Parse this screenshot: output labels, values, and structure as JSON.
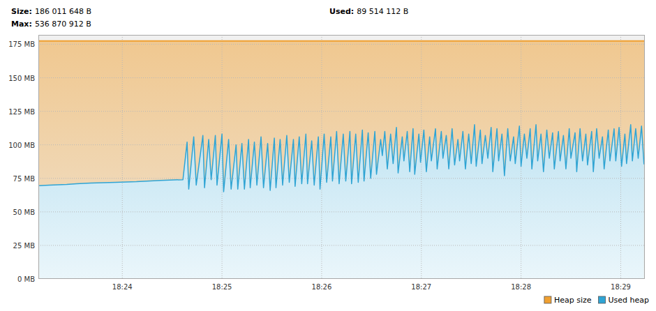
{
  "chart_data": {
    "type": "area",
    "annotations": [
      {
        "label": "Size:",
        "text": "186 011 648 B"
      },
      {
        "label": "Max:",
        "text": "536 870 912 B"
      },
      {
        "label": "Used:",
        "text": "89 514 112 B"
      }
    ],
    "xlim": [
      1389.5,
      1754.5
    ],
    "xticks": [
      {
        "value": 1440,
        "label": "18:24"
      },
      {
        "value": 1500,
        "label": "18:25"
      },
      {
        "value": 1560,
        "label": "18:26"
      },
      {
        "value": 1620,
        "label": "18:27"
      },
      {
        "value": 1680,
        "label": "18:28"
      },
      {
        "value": 1740,
        "label": "18:29"
      }
    ],
    "ylim": [
      0,
      182
    ],
    "yticks": [
      {
        "value": 0,
        "label": "0 MB"
      },
      {
        "value": 25,
        "label": "25 MB"
      },
      {
        "value": 50,
        "label": "50 MB"
      },
      {
        "value": 75,
        "label": "75 MB"
      },
      {
        "value": 100,
        "label": "100 MB"
      },
      {
        "value": 125,
        "label": "125 MB"
      },
      {
        "value": 150,
        "label": "150 MB"
      },
      {
        "value": 175,
        "label": "175 MB"
      }
    ],
    "grid": true,
    "legend": "bottom-right",
    "series": [
      {
        "name": "Heap size",
        "color": "#f0a030",
        "x": [
          1389.5,
          1754.5
        ],
        "values": [
          177.4,
          177.4
        ]
      },
      {
        "name": "Used heap",
        "color": "#2fa4d4",
        "x": [
          1390,
          1396,
          1406.5,
          1412.5,
          1421,
          1436,
          1448.5,
          1463,
          1476.5,
          1479,
          1480,
          1483,
          1484.5,
          1488.5,
          1489.5,
          1492,
          1493.5,
          1496,
          1497,
          1500,
          1501,
          1504,
          1505.5,
          1508.5,
          1509.5,
          1512,
          1513.5,
          1516,
          1517,
          1519.5,
          1521,
          1523.5,
          1525,
          1527.5,
          1529,
          1531.5,
          1532.5,
          1535,
          1536.5,
          1539,
          1540.5,
          1543,
          1544,
          1546.5,
          1548,
          1550.5,
          1551.5,
          1554,
          1555.5,
          1558,
          1559,
          1561.5,
          1563,
          1565.5,
          1566.5,
          1569,
          1570.5,
          1573,
          1574.5,
          1577,
          1578,
          1580.5,
          1582,
          1584.5,
          1585.5,
          1588,
          1589.5,
          1592,
          1593,
          1595.5,
          1596.5,
          1598,
          1599.5,
          1601.5,
          1603,
          1605,
          1606,
          1608.5,
          1609.5,
          1611.5,
          1613,
          1615,
          1616,
          1618.5,
          1619.5,
          1621.5,
          1623,
          1625,
          1626,
          1628.5,
          1629.5,
          1632,
          1633,
          1635,
          1636.5,
          1638.5,
          1640,
          1642,
          1643,
          1645,
          1646.5,
          1648.5,
          1650,
          1652,
          1653,
          1655.5,
          1656.5,
          1658.5,
          1660,
          1662,
          1663,
          1665.5,
          1666.5,
          1668.5,
          1670,
          1672,
          1673.5,
          1675.5,
          1676.5,
          1679,
          1680,
          1682,
          1683.5,
          1685.5,
          1686.5,
          1689,
          1690,
          1692,
          1693.5,
          1695.5,
          1697,
          1699,
          1700,
          1702.5,
          1703.5,
          1705.5,
          1707,
          1709,
          1710,
          1712.5,
          1713.5,
          1715.5,
          1717,
          1719,
          1720,
          1722.5,
          1723.5,
          1725.5,
          1727,
          1729,
          1730,
          1732.5,
          1733.5,
          1736,
          1737,
          1739,
          1740.5,
          1742.5,
          1743.5,
          1746,
          1747,
          1749,
          1750.5,
          1752.5,
          1754
        ],
        "values": [
          69.5,
          70,
          70.5,
          71,
          71.5,
          72,
          72.5,
          73.5,
          74,
          102,
          67,
          106,
          70,
          107,
          68,
          104,
          74,
          107,
          70,
          108,
          65,
          104,
          67,
          100,
          67,
          101,
          67,
          104,
          68,
          102,
          70,
          106,
          68,
          101,
          66,
          105,
          68,
          104,
          70,
          107,
          72,
          104,
          69,
          106,
          71,
          108,
          71,
          103,
          70,
          106,
          67,
          108,
          72,
          106,
          73,
          110,
          71,
          108,
          73,
          110,
          71,
          108,
          72,
          111,
          73,
          109,
          75,
          110,
          78,
          104,
          92,
          110,
          82,
          108,
          86,
          113,
          79,
          106,
          88,
          110,
          80,
          112,
          78,
          108,
          87,
          111,
          80,
          106,
          88,
          112,
          82,
          110,
          90,
          107,
          82,
          112,
          85,
          104,
          88,
          110,
          82,
          108,
          86,
          115,
          84,
          111,
          86,
          107,
          90,
          113,
          80,
          112,
          88,
          108,
          77,
          112,
          88,
          106,
          86,
          114,
          84,
          108,
          90,
          112,
          82,
          115,
          88,
          108,
          80,
          111,
          90,
          109,
          82,
          110,
          88,
          107,
          82,
          112,
          90,
          109,
          80,
          112,
          88,
          108,
          85,
          110,
          80,
          112,
          90,
          106,
          82,
          111,
          88,
          112,
          88,
          113,
          84,
          108,
          86,
          115,
          88,
          112,
          90,
          114,
          85.4
        ]
      }
    ]
  }
}
